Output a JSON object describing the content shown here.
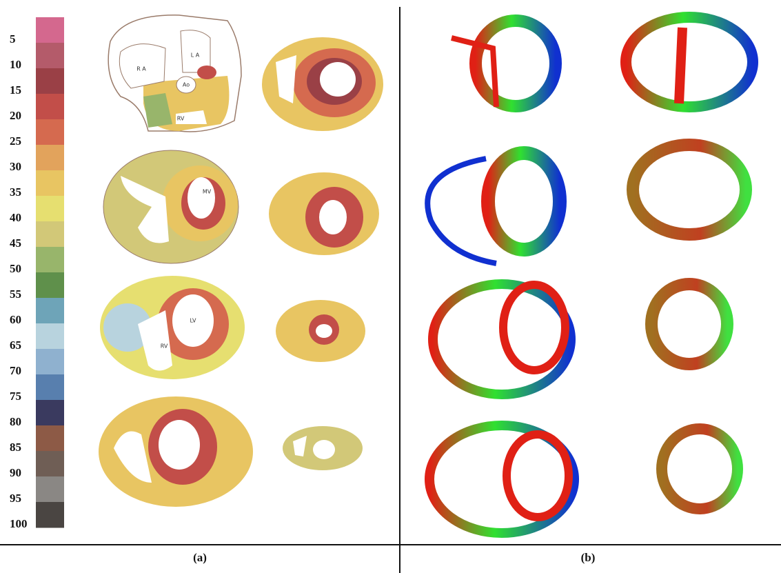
{
  "color_scale": {
    "labels": [
      5,
      10,
      15,
      20,
      25,
      30,
      35,
      40,
      45,
      50,
      55,
      60,
      65,
      70,
      75,
      80,
      85,
      90,
      95,
      100
    ],
    "colors": [
      "#d4688e",
      "#b45b6a",
      "#9a4046",
      "#c24e49",
      "#d56a4f",
      "#e2a35c",
      "#e8c562",
      "#e6df70",
      "#d2c878",
      "#98b56b",
      "#5f904b",
      "#6ea4b8",
      "#b8d3de",
      "#8fb1cf",
      "#587fae",
      "#3a3a5f",
      "#8d5a46",
      "#6f5e55",
      "#8a8784",
      "#4a4542"
    ]
  },
  "panel_a": {
    "caption": "(a)",
    "slice_labels": [
      "R A",
      "L A",
      "Ao",
      "RV",
      "MV",
      "LV",
      "RV"
    ]
  },
  "panel_b": {
    "caption": "(b)"
  }
}
